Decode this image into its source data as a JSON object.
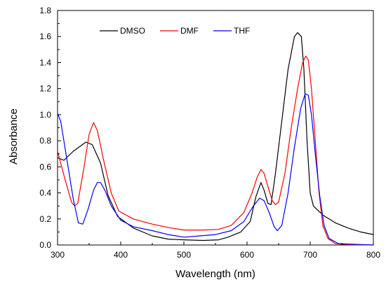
{
  "chart_data": {
    "type": "line",
    "title": "",
    "xlabel": "Wavelength (nm)",
    "ylabel": "Absorbance",
    "xlim": [
      300,
      800
    ],
    "ylim": [
      0.0,
      1.8
    ],
    "xticks": [
      300,
      400,
      500,
      600,
      700,
      800
    ],
    "xtick_labels": [
      "300",
      "400",
      "500",
      "600",
      "700",
      "800"
    ],
    "yticks": [
      0.0,
      0.2,
      0.4,
      0.6,
      0.8,
      1.0,
      1.2,
      1.4,
      1.6,
      1.8
    ],
    "ytick_labels": [
      "0.0",
      "0.2",
      "0.4",
      "0.6",
      "0.8",
      "1.0",
      "1.2",
      "1.4",
      "1.6",
      "1.8"
    ],
    "grid": false,
    "legend_position": "top-left",
    "series": [
      {
        "name": "DMSO",
        "color": "#000000",
        "points": [
          [
            300,
            0.67
          ],
          [
            310,
            0.65
          ],
          [
            325,
            0.72
          ],
          [
            345,
            0.79
          ],
          [
            355,
            0.77
          ],
          [
            368,
            0.63
          ],
          [
            380,
            0.38
          ],
          [
            395,
            0.22
          ],
          [
            420,
            0.13
          ],
          [
            450,
            0.07
          ],
          [
            475,
            0.045
          ],
          [
            500,
            0.04
          ],
          [
            530,
            0.035
          ],
          [
            555,
            0.04
          ],
          [
            570,
            0.06
          ],
          [
            590,
            0.1
          ],
          [
            605,
            0.18
          ],
          [
            614,
            0.37
          ],
          [
            622,
            0.48
          ],
          [
            627,
            0.42
          ],
          [
            633,
            0.32
          ],
          [
            638,
            0.31
          ],
          [
            645,
            0.55
          ],
          [
            655,
            0.95
          ],
          [
            665,
            1.35
          ],
          [
            675,
            1.6
          ],
          [
            680,
            1.63
          ],
          [
            686,
            1.6
          ],
          [
            690,
            1.35
          ],
          [
            695,
            0.8
          ],
          [
            700,
            0.4
          ],
          [
            705,
            0.3
          ],
          [
            720,
            0.23
          ],
          [
            740,
            0.17
          ],
          [
            760,
            0.13
          ],
          [
            780,
            0.1
          ],
          [
            800,
            0.08
          ]
        ]
      },
      {
        "name": "DMF",
        "color": "#ff0000",
        "points": [
          [
            300,
            0.72
          ],
          [
            312,
            0.5
          ],
          [
            322,
            0.33
          ],
          [
            327,
            0.3
          ],
          [
            332,
            0.32
          ],
          [
            342,
            0.6
          ],
          [
            350,
            0.85
          ],
          [
            357,
            0.94
          ],
          [
            363,
            0.88
          ],
          [
            373,
            0.65
          ],
          [
            385,
            0.4
          ],
          [
            397,
            0.26
          ],
          [
            420,
            0.2
          ],
          [
            450,
            0.16
          ],
          [
            480,
            0.13
          ],
          [
            500,
            0.115
          ],
          [
            530,
            0.115
          ],
          [
            555,
            0.12
          ],
          [
            575,
            0.15
          ],
          [
            595,
            0.25
          ],
          [
            608,
            0.4
          ],
          [
            616,
            0.52
          ],
          [
            622,
            0.58
          ],
          [
            627,
            0.55
          ],
          [
            633,
            0.45
          ],
          [
            640,
            0.34
          ],
          [
            645,
            0.31
          ],
          [
            650,
            0.33
          ],
          [
            660,
            0.55
          ],
          [
            670,
            0.9
          ],
          [
            680,
            1.2
          ],
          [
            688,
            1.4
          ],
          [
            693,
            1.45
          ],
          [
            697,
            1.42
          ],
          [
            702,
            1.2
          ],
          [
            708,
            0.8
          ],
          [
            714,
            0.4
          ],
          [
            720,
            0.15
          ],
          [
            728,
            0.05
          ],
          [
            740,
            0.01
          ],
          [
            760,
            0.003
          ],
          [
            800,
            0.0
          ]
        ]
      },
      {
        "name": "THF",
        "color": "#0000ff",
        "points": [
          [
            300,
            1.01
          ],
          [
            305,
            0.95
          ],
          [
            315,
            0.65
          ],
          [
            325,
            0.35
          ],
          [
            333,
            0.17
          ],
          [
            340,
            0.16
          ],
          [
            348,
            0.27
          ],
          [
            357,
            0.42
          ],
          [
            363,
            0.48
          ],
          [
            368,
            0.48
          ],
          [
            375,
            0.42
          ],
          [
            385,
            0.3
          ],
          [
            400,
            0.19
          ],
          [
            420,
            0.14
          ],
          [
            450,
            0.11
          ],
          [
            475,
            0.08
          ],
          [
            500,
            0.06
          ],
          [
            525,
            0.07
          ],
          [
            550,
            0.08
          ],
          [
            575,
            0.11
          ],
          [
            595,
            0.18
          ],
          [
            610,
            0.3
          ],
          [
            620,
            0.36
          ],
          [
            627,
            0.34
          ],
          [
            635,
            0.25
          ],
          [
            643,
            0.14
          ],
          [
            648,
            0.11
          ],
          [
            655,
            0.15
          ],
          [
            665,
            0.4
          ],
          [
            675,
            0.75
          ],
          [
            685,
            1.05
          ],
          [
            692,
            1.16
          ],
          [
            697,
            1.15
          ],
          [
            702,
            1.0
          ],
          [
            708,
            0.7
          ],
          [
            715,
            0.38
          ],
          [
            722,
            0.15
          ],
          [
            730,
            0.05
          ],
          [
            745,
            0.01
          ],
          [
            800,
            0.0
          ]
        ]
      }
    ]
  }
}
